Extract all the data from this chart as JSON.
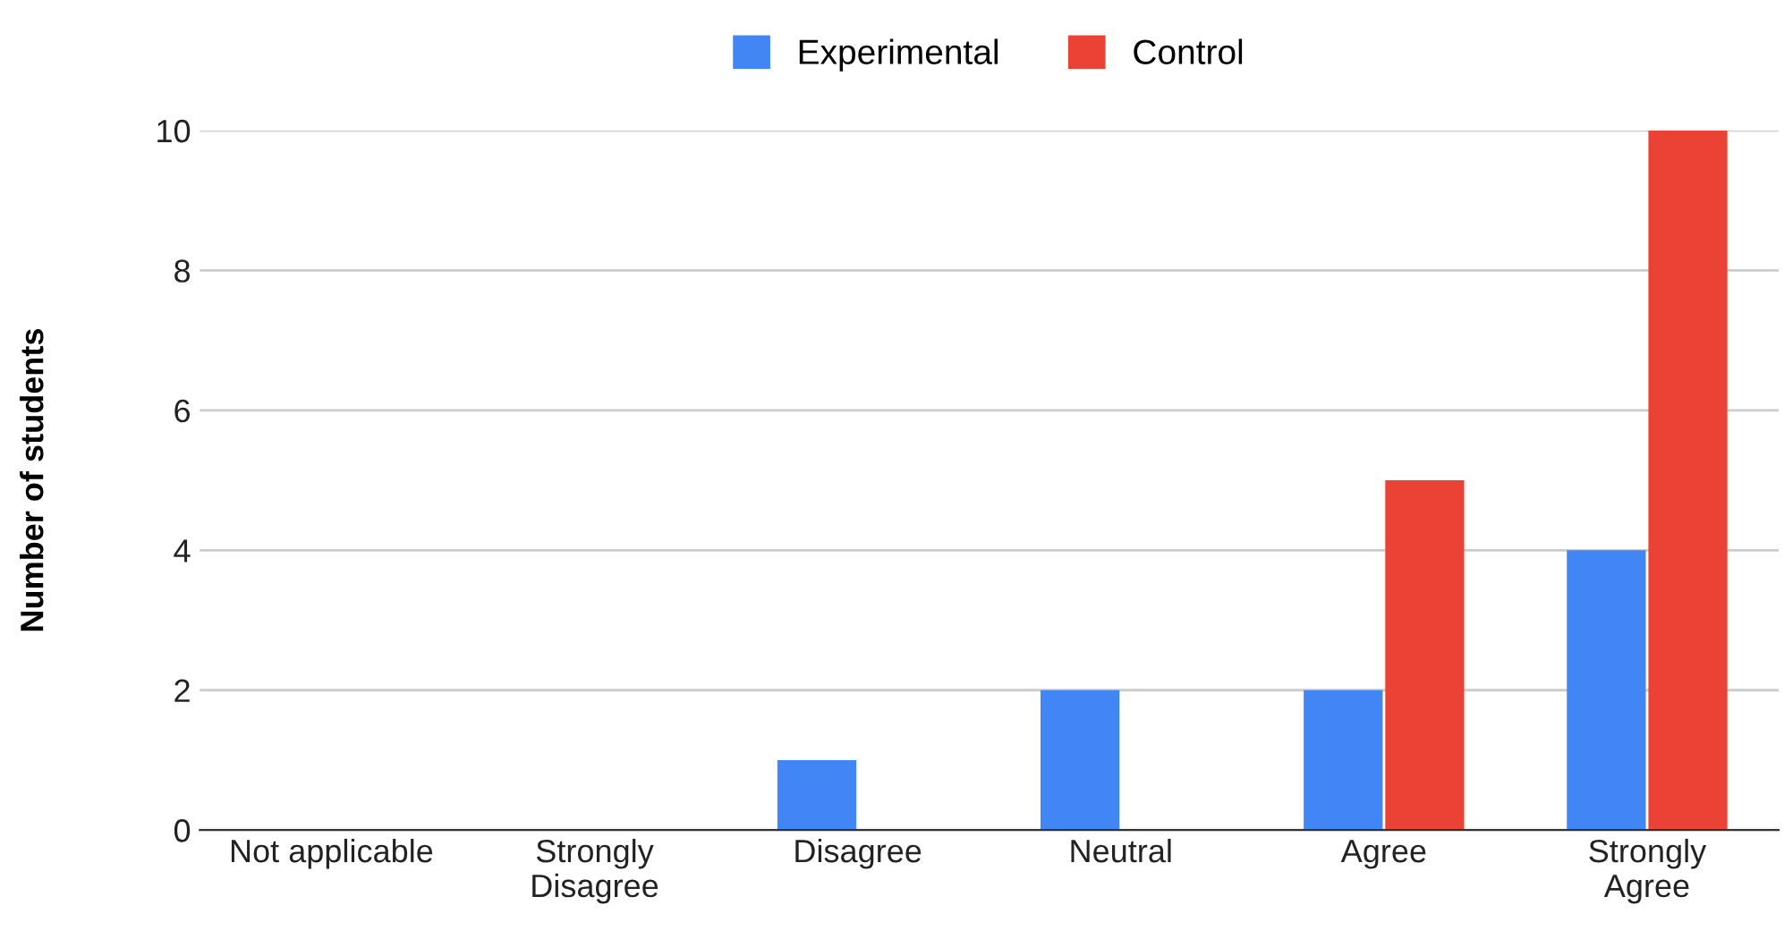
{
  "chart_data": {
    "type": "bar",
    "ylabel": "Number of students",
    "categories": [
      "Not applicable",
      "Strongly\nDisagree",
      "Disagree",
      "Neutral",
      "Agree",
      "Strongly\nAgree"
    ],
    "series": [
      {
        "name": "Experimental",
        "color": "#4285f4",
        "values": [
          0,
          0,
          1,
          2,
          2,
          4
        ]
      },
      {
        "name": "Control",
        "color": "#ea4335",
        "values": [
          0,
          0,
          0,
          0,
          5,
          10
        ]
      }
    ],
    "ylim": [
      0,
      10
    ],
    "yticks": [
      0,
      2,
      4,
      6,
      8,
      10
    ],
    "grid": "y",
    "legend": "top"
  }
}
